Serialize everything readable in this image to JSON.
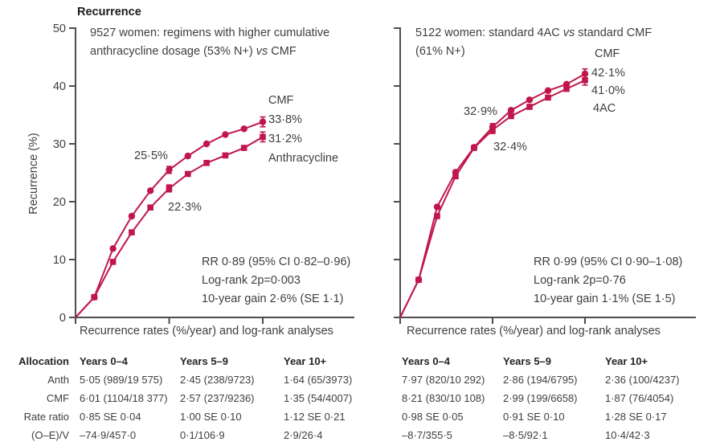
{
  "figure": {
    "title": "Recurrence",
    "y_axis_label": "Recurrence (%)"
  },
  "colors": {
    "accent": "#C0164B",
    "axis": "#4d4d4d",
    "text": "#3e3e3e",
    "title_text": "#1b1b1b"
  },
  "chart_data": [
    {
      "type": "line",
      "panel": "left",
      "heading": {
        "line1": "9527 women: regimens with higher cumulative",
        "line2_a": "anthracycline dosage (53% N+) ",
        "line2_vs": "vs",
        "line2_b": " CMF"
      },
      "x": [
        0,
        1,
        2,
        3,
        4,
        5,
        6,
        7,
        8,
        9,
        10
      ],
      "series": [
        {
          "name": "CMF",
          "marker": "circle",
          "values": [
            0,
            3.5,
            11.9,
            17.5,
            21.9,
            25.5,
            27.9,
            30.0,
            31.6,
            32.6,
            33.8
          ],
          "end_label": "33·8%"
        },
        {
          "name": "Anthracycline",
          "marker": "square",
          "values": [
            0,
            3.5,
            9.6,
            14.7,
            19.0,
            22.3,
            24.8,
            26.7,
            28.0,
            29.3,
            31.2
          ],
          "end_label": "31·2%"
        }
      ],
      "annotations": {
        "year5_series1": "25·5%",
        "year5_series2": "22·3%"
      },
      "stats": [
        "RR 0·89 (95% CI 0·82–0·96)",
        "Log-rank 2p=0·003",
        "10-year gain 2·6% (SE 1·1)"
      ],
      "ylim": [
        0,
        50
      ],
      "yticks": [
        0,
        10,
        20,
        30,
        40,
        50
      ],
      "xticks_years": [
        0,
        5,
        10
      ],
      "error_bar_years": [
        5,
        10
      ],
      "grid": false
    },
    {
      "type": "line",
      "panel": "right",
      "heading": {
        "line1_a": "5122 women: standard 4AC ",
        "line1_vs": "vs",
        "line1_b": " standard CMF",
        "line2": "(61% N+)"
      },
      "x": [
        0,
        1,
        2,
        3,
        4,
        5,
        6,
        7,
        8,
        9,
        10
      ],
      "series": [
        {
          "name": "CMF",
          "marker": "circle",
          "values": [
            0,
            6.5,
            19.1,
            25.1,
            29.4,
            32.9,
            35.8,
            37.6,
            39.2,
            40.3,
            42.1
          ],
          "end_label": "42·1%"
        },
        {
          "name": "4AC",
          "marker": "square",
          "values": [
            0,
            6.5,
            17.5,
            24.4,
            29.3,
            32.4,
            34.8,
            36.4,
            38.0,
            39.5,
            41.0
          ],
          "end_label": "41·0%"
        }
      ],
      "annotations": {
        "year5_series1": "32·9%",
        "year5_series2": "32·4%"
      },
      "stats": [
        "RR 0·99 (95% CI 0·90–1·08)",
        "Log-rank 2p=0·76",
        "10-year gain 1·1% (SE 1·5)"
      ],
      "ylim": [
        0,
        50
      ],
      "yticks": [
        0,
        10,
        20,
        30,
        40,
        50
      ],
      "xticks_years": [
        0,
        5,
        10
      ],
      "error_bar_years": [
        5,
        10
      ],
      "grid": false
    }
  ],
  "captions": {
    "left": "Recurrence rates (%/year) and log-rank analyses",
    "right": "Recurrence rates (%/year) and log-rank analyses"
  },
  "table": {
    "row_header": "Allocation",
    "col_headers_left": [
      "Years 0–4",
      "Years 5–9",
      "Year 10+"
    ],
    "col_headers_right": [
      "Years 0–4",
      "Years 5–9",
      "Year 10+"
    ],
    "rows": [
      {
        "label": "Anth",
        "left": [
          "5·05 (989/19 575)",
          "2·45 (238/9723)",
          "1·64 (65/3973)"
        ],
        "right": [
          "7·97 (820/10 292)",
          "2·86 (194/6795)",
          "2·36 (100/4237)"
        ]
      },
      {
        "label": "CMF",
        "left": [
          "6·01 (1104/18 377)",
          "2·57 (237/9236)",
          "1·35 (54/4007)"
        ],
        "right": [
          "8·21 (830/10 108)",
          "2·99 (199/6658)",
          "1·87 (76/4054)"
        ]
      },
      {
        "label": "Rate ratio",
        "left": [
          "0·85 SE 0·04",
          "1·00 SE 0·10",
          "1·12 SE 0·21"
        ],
        "right": [
          "0·98 SE 0·05",
          "0·91 SE 0·10",
          "1·28 SE 0·17"
        ]
      },
      {
        "label": "(O–E)/V",
        "left": [
          "–74·9/457·0",
          "0·1/106·9",
          "2·9/26·4"
        ],
        "right": [
          "–8·7/355·5",
          "–8·5/92·1",
          "10·4/42·3"
        ]
      }
    ]
  }
}
